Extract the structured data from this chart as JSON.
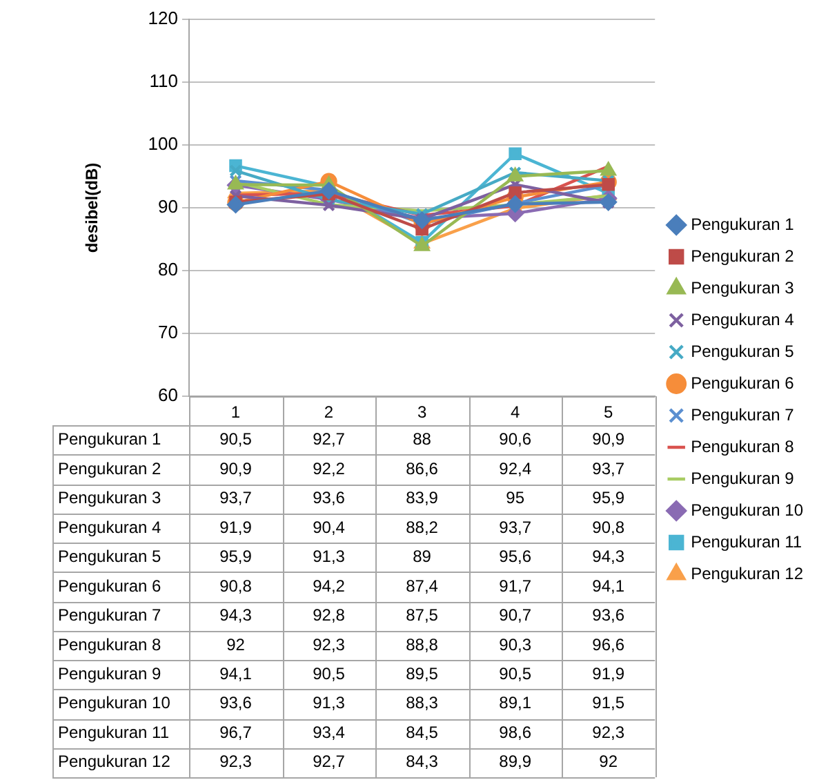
{
  "chart_data": {
    "type": "line",
    "ylabel": "desibel(dB)",
    "categories": [
      "1",
      "2",
      "3",
      "4",
      "5"
    ],
    "ylim": [
      60,
      120
    ],
    "yticks": [
      60,
      70,
      80,
      90,
      100,
      110,
      120
    ],
    "grid": "y",
    "legend": "right",
    "line_style": "solid",
    "series": [
      {
        "name": "Pengukuran 1",
        "color": "#4a7ebb",
        "marker": "diamond",
        "values": [
          90.5,
          92.7,
          88,
          90.6,
          90.9
        ],
        "value_labels": [
          "90,5",
          "92,7",
          "88",
          "90,6",
          "90,9"
        ]
      },
      {
        "name": "Pengukuran 2",
        "color": "#be4b48",
        "marker": "square",
        "values": [
          90.9,
          92.2,
          86.6,
          92.4,
          93.7
        ],
        "value_labels": [
          "90,9",
          "92,2",
          "86,6",
          "92,4",
          "93,7"
        ]
      },
      {
        "name": "Pengukuran 3",
        "color": "#98b954",
        "marker": "triangle",
        "values": [
          93.7,
          93.6,
          83.9,
          95,
          95.9
        ],
        "value_labels": [
          "93,7",
          "93,6",
          "83,9",
          "95",
          "95,9"
        ]
      },
      {
        "name": "Pengukuran 4",
        "color": "#7d60a0",
        "marker": "cross",
        "values": [
          91.9,
          90.4,
          88.2,
          93.7,
          90.8
        ],
        "value_labels": [
          "91,9",
          "90,4",
          "88,2",
          "93,7",
          "90,8"
        ]
      },
      {
        "name": "Pengukuran 5",
        "color": "#46aac5",
        "marker": "cross",
        "values": [
          95.9,
          91.3,
          89,
          95.6,
          94.3
        ],
        "value_labels": [
          "95,9",
          "91,3",
          "89",
          "95,6",
          "94,3"
        ]
      },
      {
        "name": "Pengukuran 6",
        "color": "#f68d3a",
        "marker": "circle",
        "values": [
          90.8,
          94.2,
          87.4,
          91.7,
          94.1
        ],
        "value_labels": [
          "90,8",
          "94,2",
          "87,4",
          "91,7",
          "94,1"
        ]
      },
      {
        "name": "Pengukuran 7",
        "color": "#5b8fd0",
        "marker": "cross",
        "values": [
          94.3,
          92.8,
          87.5,
          90.7,
          93.6
        ],
        "value_labels": [
          "94,3",
          "92,8",
          "87,5",
          "90,7",
          "93,6"
        ]
      },
      {
        "name": "Pengukuran 8",
        "color": "#d9534f",
        "marker": "none",
        "values": [
          92,
          92.3,
          88.8,
          90.3,
          96.6
        ],
        "value_labels": [
          "92",
          "92,3",
          "88,8",
          "90,3",
          "96,6"
        ]
      },
      {
        "name": "Pengukuran 9",
        "color": "#a8cc63",
        "marker": "none",
        "values": [
          94.1,
          90.5,
          89.5,
          90.5,
          91.9
        ],
        "value_labels": [
          "94,1",
          "90,5",
          "89,5",
          "90,5",
          "91,9"
        ]
      },
      {
        "name": "Pengukuran 10",
        "color": "#8a6bb3",
        "marker": "diamond",
        "values": [
          93.6,
          91.3,
          88.3,
          89.1,
          91.5
        ],
        "value_labels": [
          "93,6",
          "91,3",
          "88,3",
          "89,1",
          "91,5"
        ]
      },
      {
        "name": "Pengukuran 11",
        "color": "#4bb5d3",
        "marker": "square",
        "values": [
          96.7,
          93.4,
          84.5,
          98.6,
          92.3
        ],
        "value_labels": [
          "96,7",
          "93,4",
          "84,5",
          "98,6",
          "92,3"
        ]
      },
      {
        "name": "Pengukuran 12",
        "color": "#f9a04a",
        "marker": "triangle",
        "values": [
          92.3,
          92.7,
          84.3,
          89.9,
          92
        ],
        "value_labels": [
          "92,3",
          "92,7",
          "84,3",
          "89,9",
          "92"
        ]
      }
    ]
  }
}
